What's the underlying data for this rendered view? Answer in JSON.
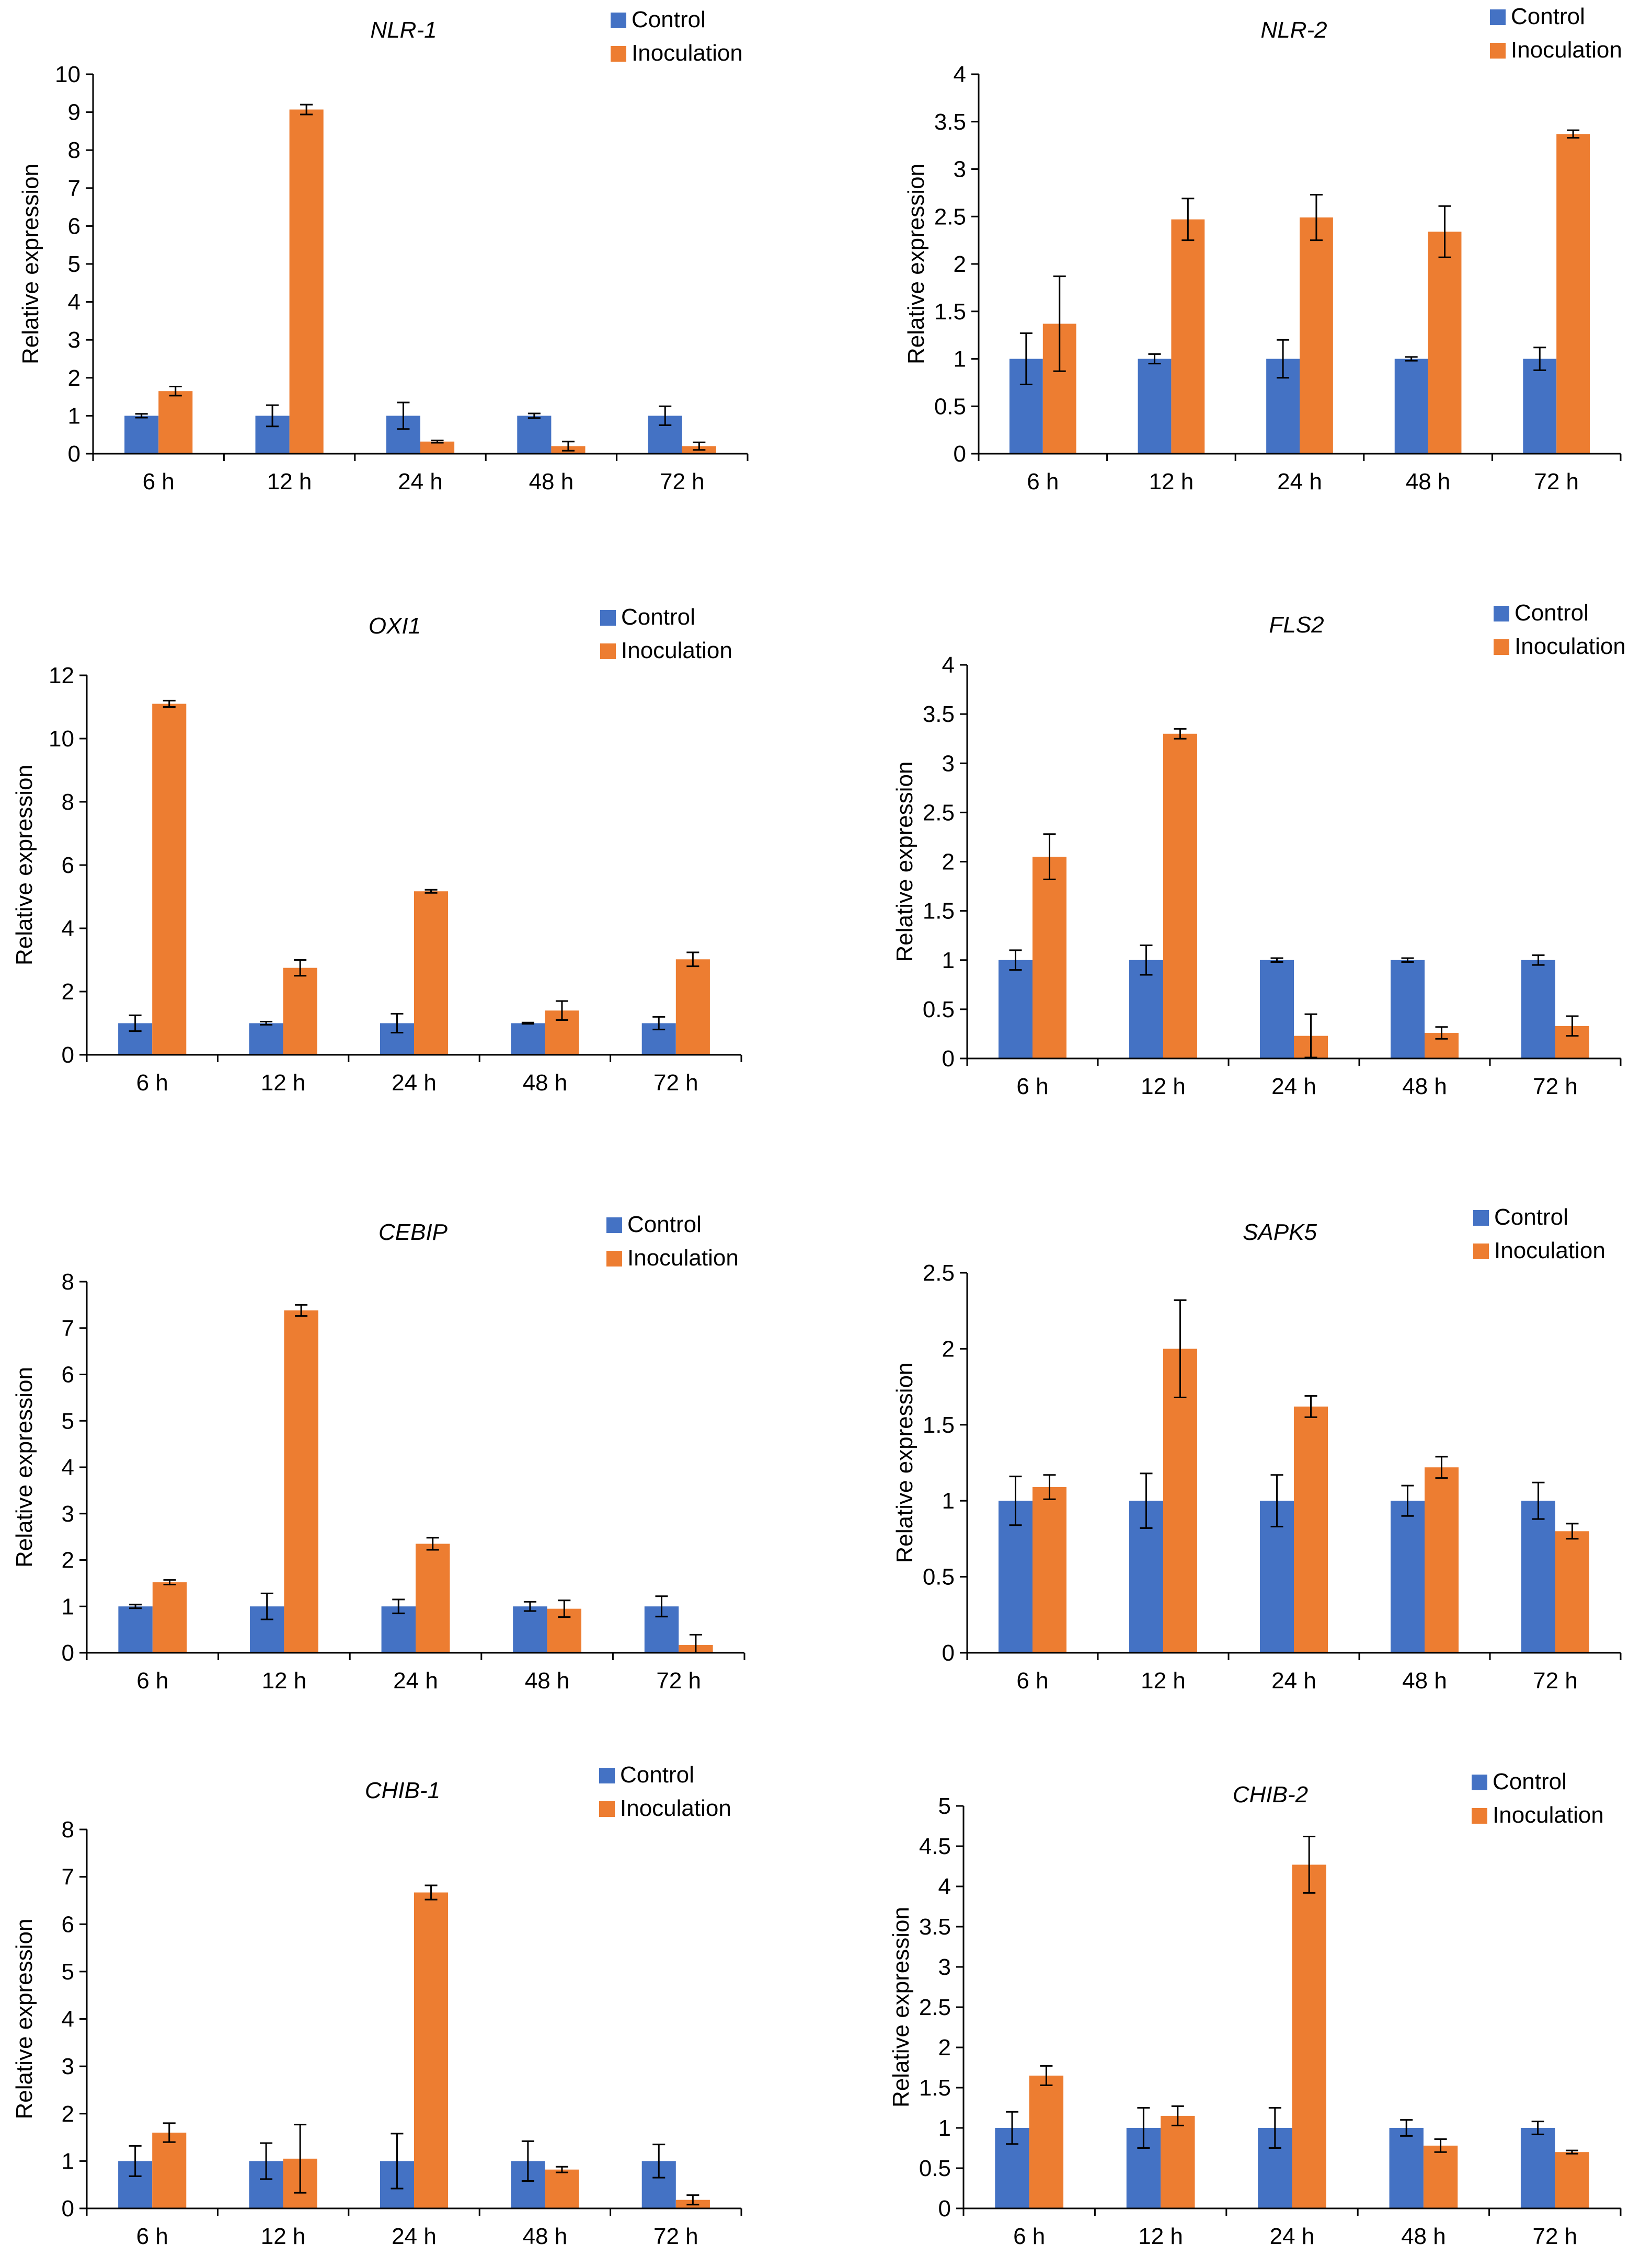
{
  "colors": {
    "control": "#4472C4",
    "inoculation": "#ED7D31",
    "axis": "#000000"
  },
  "chart_data": [
    {
      "type": "bar",
      "title": "NLR-1",
      "xlabel": "",
      "ylabel": "Relative expression",
      "ylim": [
        0,
        10
      ],
      "yticks": [
        "0",
        "1",
        "2",
        "3",
        "4",
        "5",
        "6",
        "7",
        "8",
        "9",
        "10"
      ],
      "categories": [
        "6 h",
        "12 h",
        "24 h",
        "48 h",
        "72 h"
      ],
      "legend": "top-right",
      "series": [
        {
          "name": "Control",
          "values": [
            1,
            1,
            1,
            1,
            1
          ],
          "errors": [
            0.05,
            0.28,
            0.35,
            0.06,
            0.25
          ]
        },
        {
          "name": "Inoculation",
          "values": [
            1.65,
            9.07,
            0.32,
            0.2,
            0.2
          ],
          "errors": [
            0.12,
            0.13,
            0.03,
            0.12,
            0.1
          ]
        }
      ]
    },
    {
      "type": "bar",
      "title": "NLR-2",
      "xlabel": "",
      "ylabel": "Relative expression",
      "ylim": [
        0,
        4
      ],
      "yticks": [
        "0",
        "0.5",
        "1",
        "1.5",
        "2",
        "2.5",
        "3",
        "3.5",
        "4"
      ],
      "categories": [
        "6 h",
        "12 h",
        "24 h",
        "48 h",
        "72 h"
      ],
      "legend": "top-right",
      "series": [
        {
          "name": "Control",
          "values": [
            1,
            1,
            1,
            1,
            1
          ],
          "errors": [
            0.27,
            0.05,
            0.2,
            0.02,
            0.12
          ]
        },
        {
          "name": "Inoculation",
          "values": [
            1.37,
            2.47,
            2.49,
            2.34,
            3.37
          ],
          "errors": [
            0.5,
            0.22,
            0.24,
            0.27,
            0.04
          ]
        }
      ]
    },
    {
      "type": "bar",
      "title": "OXI1",
      "xlabel": "",
      "ylabel": "Relative expression",
      "ylim": [
        0,
        12
      ],
      "yticks": [
        "0",
        "2",
        "4",
        "6",
        "8",
        "10",
        "12"
      ],
      "categories": [
        "6 h",
        "12 h",
        "24 h",
        "48 h",
        "72 h"
      ],
      "legend": "top-right",
      "series": [
        {
          "name": "Control",
          "values": [
            1,
            1,
            1,
            1,
            1
          ],
          "errors": [
            0.25,
            0.05,
            0.3,
            0.02,
            0.2
          ]
        },
        {
          "name": "Inoculation",
          "values": [
            11.1,
            2.75,
            5.17,
            1.4,
            3.02
          ],
          "errors": [
            0.1,
            0.25,
            0.05,
            0.3,
            0.22
          ]
        }
      ]
    },
    {
      "type": "bar",
      "title": "FLS2",
      "xlabel": "",
      "ylabel": "Relative expression",
      "ylim": [
        0,
        4
      ],
      "yticks": [
        "0",
        "0.5",
        "1",
        "1.5",
        "2",
        "2.5",
        "3",
        "3.5",
        "4"
      ],
      "categories": [
        "6 h",
        "12 h",
        "24 h",
        "48 h",
        "72 h"
      ],
      "legend": "top-right",
      "series": [
        {
          "name": "Control",
          "values": [
            1,
            1,
            1,
            1,
            1
          ],
          "errors": [
            0.1,
            0.15,
            0.02,
            0.02,
            0.05
          ]
        },
        {
          "name": "Inoculation",
          "values": [
            2.05,
            3.3,
            0.23,
            0.26,
            0.33
          ],
          "errors": [
            0.23,
            0.05,
            0.22,
            0.06,
            0.1
          ]
        }
      ]
    },
    {
      "type": "bar",
      "title": "CEBIP",
      "xlabel": "",
      "ylabel": "Relative expression",
      "ylim": [
        0,
        8
      ],
      "yticks": [
        "0",
        "1",
        "2",
        "3",
        "4",
        "5",
        "6",
        "7",
        "8"
      ],
      "categories": [
        "6 h",
        "12 h",
        "24 h",
        "48 h",
        "72 h"
      ],
      "legend": "top-right",
      "series": [
        {
          "name": "Control",
          "values": [
            1,
            1,
            1,
            1,
            1
          ],
          "errors": [
            0.04,
            0.28,
            0.15,
            0.1,
            0.22
          ]
        },
        {
          "name": "Inoculation",
          "values": [
            1.52,
            7.38,
            2.35,
            0.95,
            0.17
          ],
          "errors": [
            0.05,
            0.12,
            0.13,
            0.18,
            0.22
          ]
        }
      ]
    },
    {
      "type": "bar",
      "title": "SAPK5",
      "xlabel": "",
      "ylabel": "Relative expression",
      "ylim": [
        0,
        2.5
      ],
      "yticks": [
        "0",
        "0.5",
        "1",
        "1.5",
        "2",
        "2.5"
      ],
      "categories": [
        "6 h",
        "12 h",
        "24 h",
        "48 h",
        "72 h"
      ],
      "legend": "top-right",
      "series": [
        {
          "name": "Control",
          "values": [
            1,
            1,
            1,
            1,
            1
          ],
          "errors": [
            0.16,
            0.18,
            0.17,
            0.1,
            0.12
          ]
        },
        {
          "name": "Inoculation",
          "values": [
            1.09,
            2.0,
            1.62,
            1.22,
            0.8
          ],
          "errors": [
            0.08,
            0.32,
            0.07,
            0.07,
            0.05
          ]
        }
      ]
    },
    {
      "type": "bar",
      "title": "CHIB-1",
      "xlabel": "",
      "ylabel": "Relative expression",
      "ylim": [
        0,
        8
      ],
      "yticks": [
        "0",
        "1",
        "2",
        "3",
        "4",
        "5",
        "6",
        "7",
        "8"
      ],
      "categories": [
        "6 h",
        "12 h",
        "24 h",
        "48 h",
        "72 h"
      ],
      "legend": "top-right",
      "series": [
        {
          "name": "Control",
          "values": [
            1,
            1,
            1,
            1,
            1
          ],
          "errors": [
            0.32,
            0.38,
            0.58,
            0.42,
            0.35
          ]
        },
        {
          "name": "Inoculation",
          "values": [
            1.6,
            1.05,
            6.67,
            0.82,
            0.18
          ],
          "errors": [
            0.2,
            0.72,
            0.15,
            0.06,
            0.1
          ]
        }
      ]
    },
    {
      "type": "bar",
      "title": "CHIB-2",
      "xlabel": "",
      "ylabel": "Relative expression",
      "ylim": [
        0,
        5
      ],
      "yticks": [
        "0",
        "0.5",
        "1",
        "1.5",
        "2",
        "2.5",
        "3",
        "3.5",
        "4",
        "4.5",
        "5"
      ],
      "categories": [
        "6 h",
        "12 h",
        "24 h",
        "48 h",
        "72 h"
      ],
      "legend": "top-right",
      "series": [
        {
          "name": "Control",
          "values": [
            1,
            1,
            1,
            1,
            1
          ],
          "errors": [
            0.2,
            0.25,
            0.25,
            0.1,
            0.08
          ]
        },
        {
          "name": "Inoculation",
          "values": [
            1.65,
            1.15,
            4.27,
            0.78,
            0.7
          ],
          "errors": [
            0.12,
            0.12,
            0.35,
            0.08,
            0.02
          ]
        }
      ]
    }
  ]
}
